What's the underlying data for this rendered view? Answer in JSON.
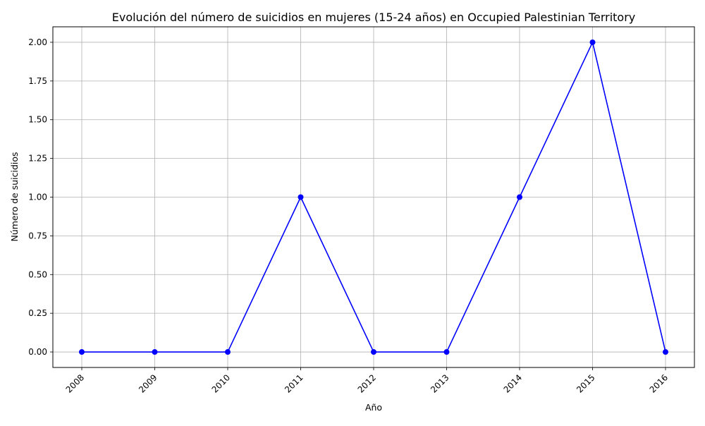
{
  "chart_data": {
    "type": "line",
    "title": "Evolución del número de suicidios en mujeres (15-24 años) en Occupied Palestinian Territory",
    "xlabel": "Año",
    "ylabel": "Número de suicidios",
    "x": [
      "2008",
      "2009",
      "2010",
      "2011",
      "2012",
      "2013",
      "2014",
      "2015",
      "2016"
    ],
    "series": [
      {
        "values": [
          0,
          0,
          0,
          1,
          0,
          0,
          1,
          2,
          0
        ],
        "color": "#0000ff",
        "marker": "circle"
      }
    ],
    "ylim": [
      -0.1,
      2.1
    ],
    "yticks": [
      "0.00",
      "0.25",
      "0.50",
      "0.75",
      "1.00",
      "1.25",
      "1.50",
      "1.75",
      "2.00"
    ],
    "xticks_rotation": 45,
    "grid": true,
    "legend": false
  }
}
